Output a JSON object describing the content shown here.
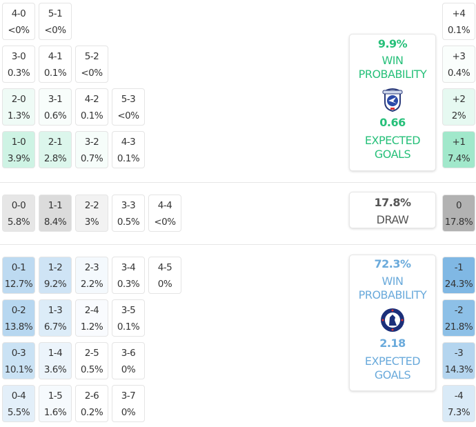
{
  "colors": {
    "home": "#2ecc71",
    "home_text": "#27c07a",
    "away": "#4a9ad8",
    "away_text": "#6aaadb",
    "draw_text": "#555555"
  },
  "home": {
    "rows": [
      [
        [
          "4-0",
          "<0%"
        ],
        [
          "5-1",
          "<0%"
        ]
      ],
      [
        [
          "3-0",
          "0.3%"
        ],
        [
          "4-1",
          "0.1%"
        ],
        [
          "5-2",
          "<0%"
        ]
      ],
      [
        [
          "2-0",
          "1.3%"
        ],
        [
          "3-1",
          "0.6%"
        ],
        [
          "4-2",
          "0.1%"
        ],
        [
          "5-3",
          "<0%"
        ]
      ],
      [
        [
          "1-0",
          "3.9%"
        ],
        [
          "2-1",
          "2.8%"
        ],
        [
          "3-2",
          "0.7%"
        ],
        [
          "4-3",
          "0.1%"
        ]
      ]
    ],
    "margins": [
      [
        "+4",
        "0.1%"
      ],
      [
        "+3",
        "0.4%"
      ],
      [
        "+2",
        "2%"
      ],
      [
        "+1",
        "7.4%"
      ]
    ],
    "card": {
      "win_pct": "9.9%",
      "win_label1": "WIN",
      "win_label2": "PROBABILITY",
      "xg": "0.66",
      "xg_label1": "EXPECTED",
      "xg_label2": "GOALS",
      "crest": "cardiff-city-crest"
    }
  },
  "draw": {
    "row": [
      [
        "0-0",
        "5.8%"
      ],
      [
        "1-1",
        "8.4%"
      ],
      [
        "2-2",
        "3%"
      ],
      [
        "3-3",
        "0.5%"
      ],
      [
        "4-4",
        "<0%"
      ]
    ],
    "margin": [
      "0",
      "17.8%"
    ],
    "card": {
      "pct": "17.8%",
      "label": "DRAW"
    }
  },
  "away": {
    "rows": [
      [
        [
          "0-1",
          "12.7%"
        ],
        [
          "1-2",
          "9.2%"
        ],
        [
          "2-3",
          "2.2%"
        ],
        [
          "3-4",
          "0.3%"
        ],
        [
          "4-5",
          "0%"
        ]
      ],
      [
        [
          "0-2",
          "13.8%"
        ],
        [
          "1-3",
          "6.7%"
        ],
        [
          "2-4",
          "1.2%"
        ],
        [
          "3-5",
          "0.1%"
        ]
      ],
      [
        [
          "0-3",
          "10.1%"
        ],
        [
          "1-4",
          "3.6%"
        ],
        [
          "2-5",
          "0.5%"
        ],
        [
          "3-6",
          "0%"
        ]
      ],
      [
        [
          "0-4",
          "5.5%"
        ],
        [
          "1-5",
          "1.6%"
        ],
        [
          "2-6",
          "0.2%"
        ],
        [
          "3-7",
          "0%"
        ]
      ]
    ],
    "margins": [
      [
        "-1",
        "24.3%"
      ],
      [
        "-2",
        "21.8%"
      ],
      [
        "-3",
        "14.3%"
      ],
      [
        "-4",
        "7.3%"
      ]
    ],
    "card": {
      "win_pct": "72.3%",
      "win_label1": "WIN",
      "win_label2": "PROBABILITY",
      "xg": "2.18",
      "xg_label1": "EXPECTED",
      "xg_label2": "GOALS",
      "crest": "chelsea-crest"
    }
  }
}
